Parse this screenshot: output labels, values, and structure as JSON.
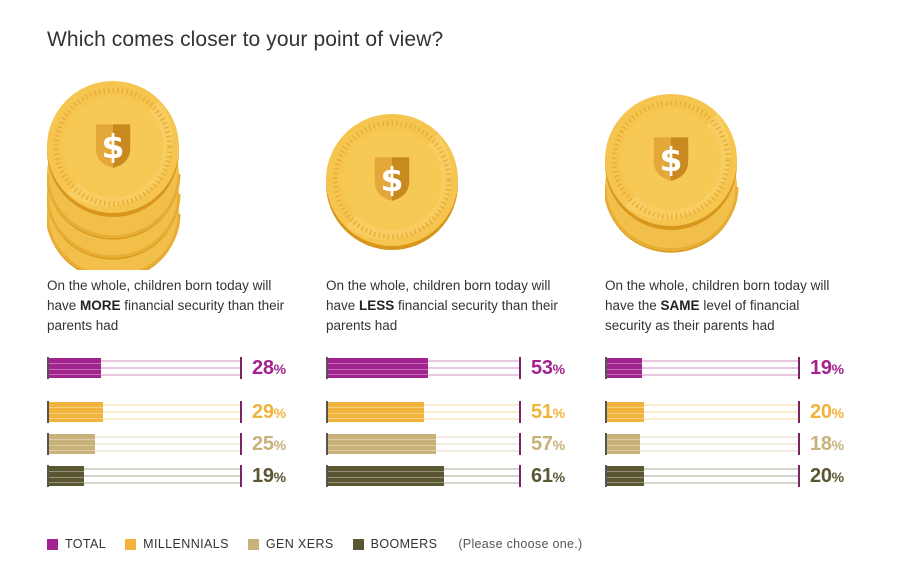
{
  "title": "Which comes closer to your point of view?",
  "colors": {
    "total": "#a3238e",
    "millennials": "#f0b43c",
    "genx": "#c8b27a",
    "boomers": "#5b5632"
  },
  "chart_data": {
    "type": "bar",
    "title": "Which comes closer to your point of view?",
    "categories": [
      "MORE",
      "LESS",
      "SAME"
    ],
    "series": [
      {
        "name": "TOTAL",
        "values": [
          28,
          53,
          19
        ]
      },
      {
        "name": "MILLENNIALS",
        "values": [
          29,
          51,
          20
        ]
      },
      {
        "name": "GEN XERS",
        "values": [
          25,
          57,
          18
        ]
      },
      {
        "name": "BOOMERS",
        "values": [
          19,
          61,
          20
        ]
      }
    ],
    "ylim": [
      0,
      100
    ],
    "panels": [
      {
        "statement_pre": "On the whole, children born today will have ",
        "statement_bold": "MORE",
        "statement_post": " financial security than their parents had",
        "coins": 4,
        "labels": [
          "28",
          "29",
          "25",
          "19"
        ]
      },
      {
        "statement_pre": "On the whole, children born today will have ",
        "statement_bold": "LESS",
        "statement_post": " financial security than their parents had",
        "coins": 1,
        "labels": [
          "53",
          "51",
          "57",
          "61"
        ]
      },
      {
        "statement_pre": "On the whole, children born today will have the ",
        "statement_bold": "SAME",
        "statement_post": " level of financial security as their parents had",
        "coins": 2,
        "labels": [
          "19",
          "20",
          "18",
          "20"
        ]
      }
    ],
    "percent_symbol": "%"
  },
  "legend": {
    "items": [
      "TOTAL",
      "MILLENNIALS",
      "GEN XERS",
      "BOOMERS"
    ],
    "note": "(Please choose one.)"
  }
}
